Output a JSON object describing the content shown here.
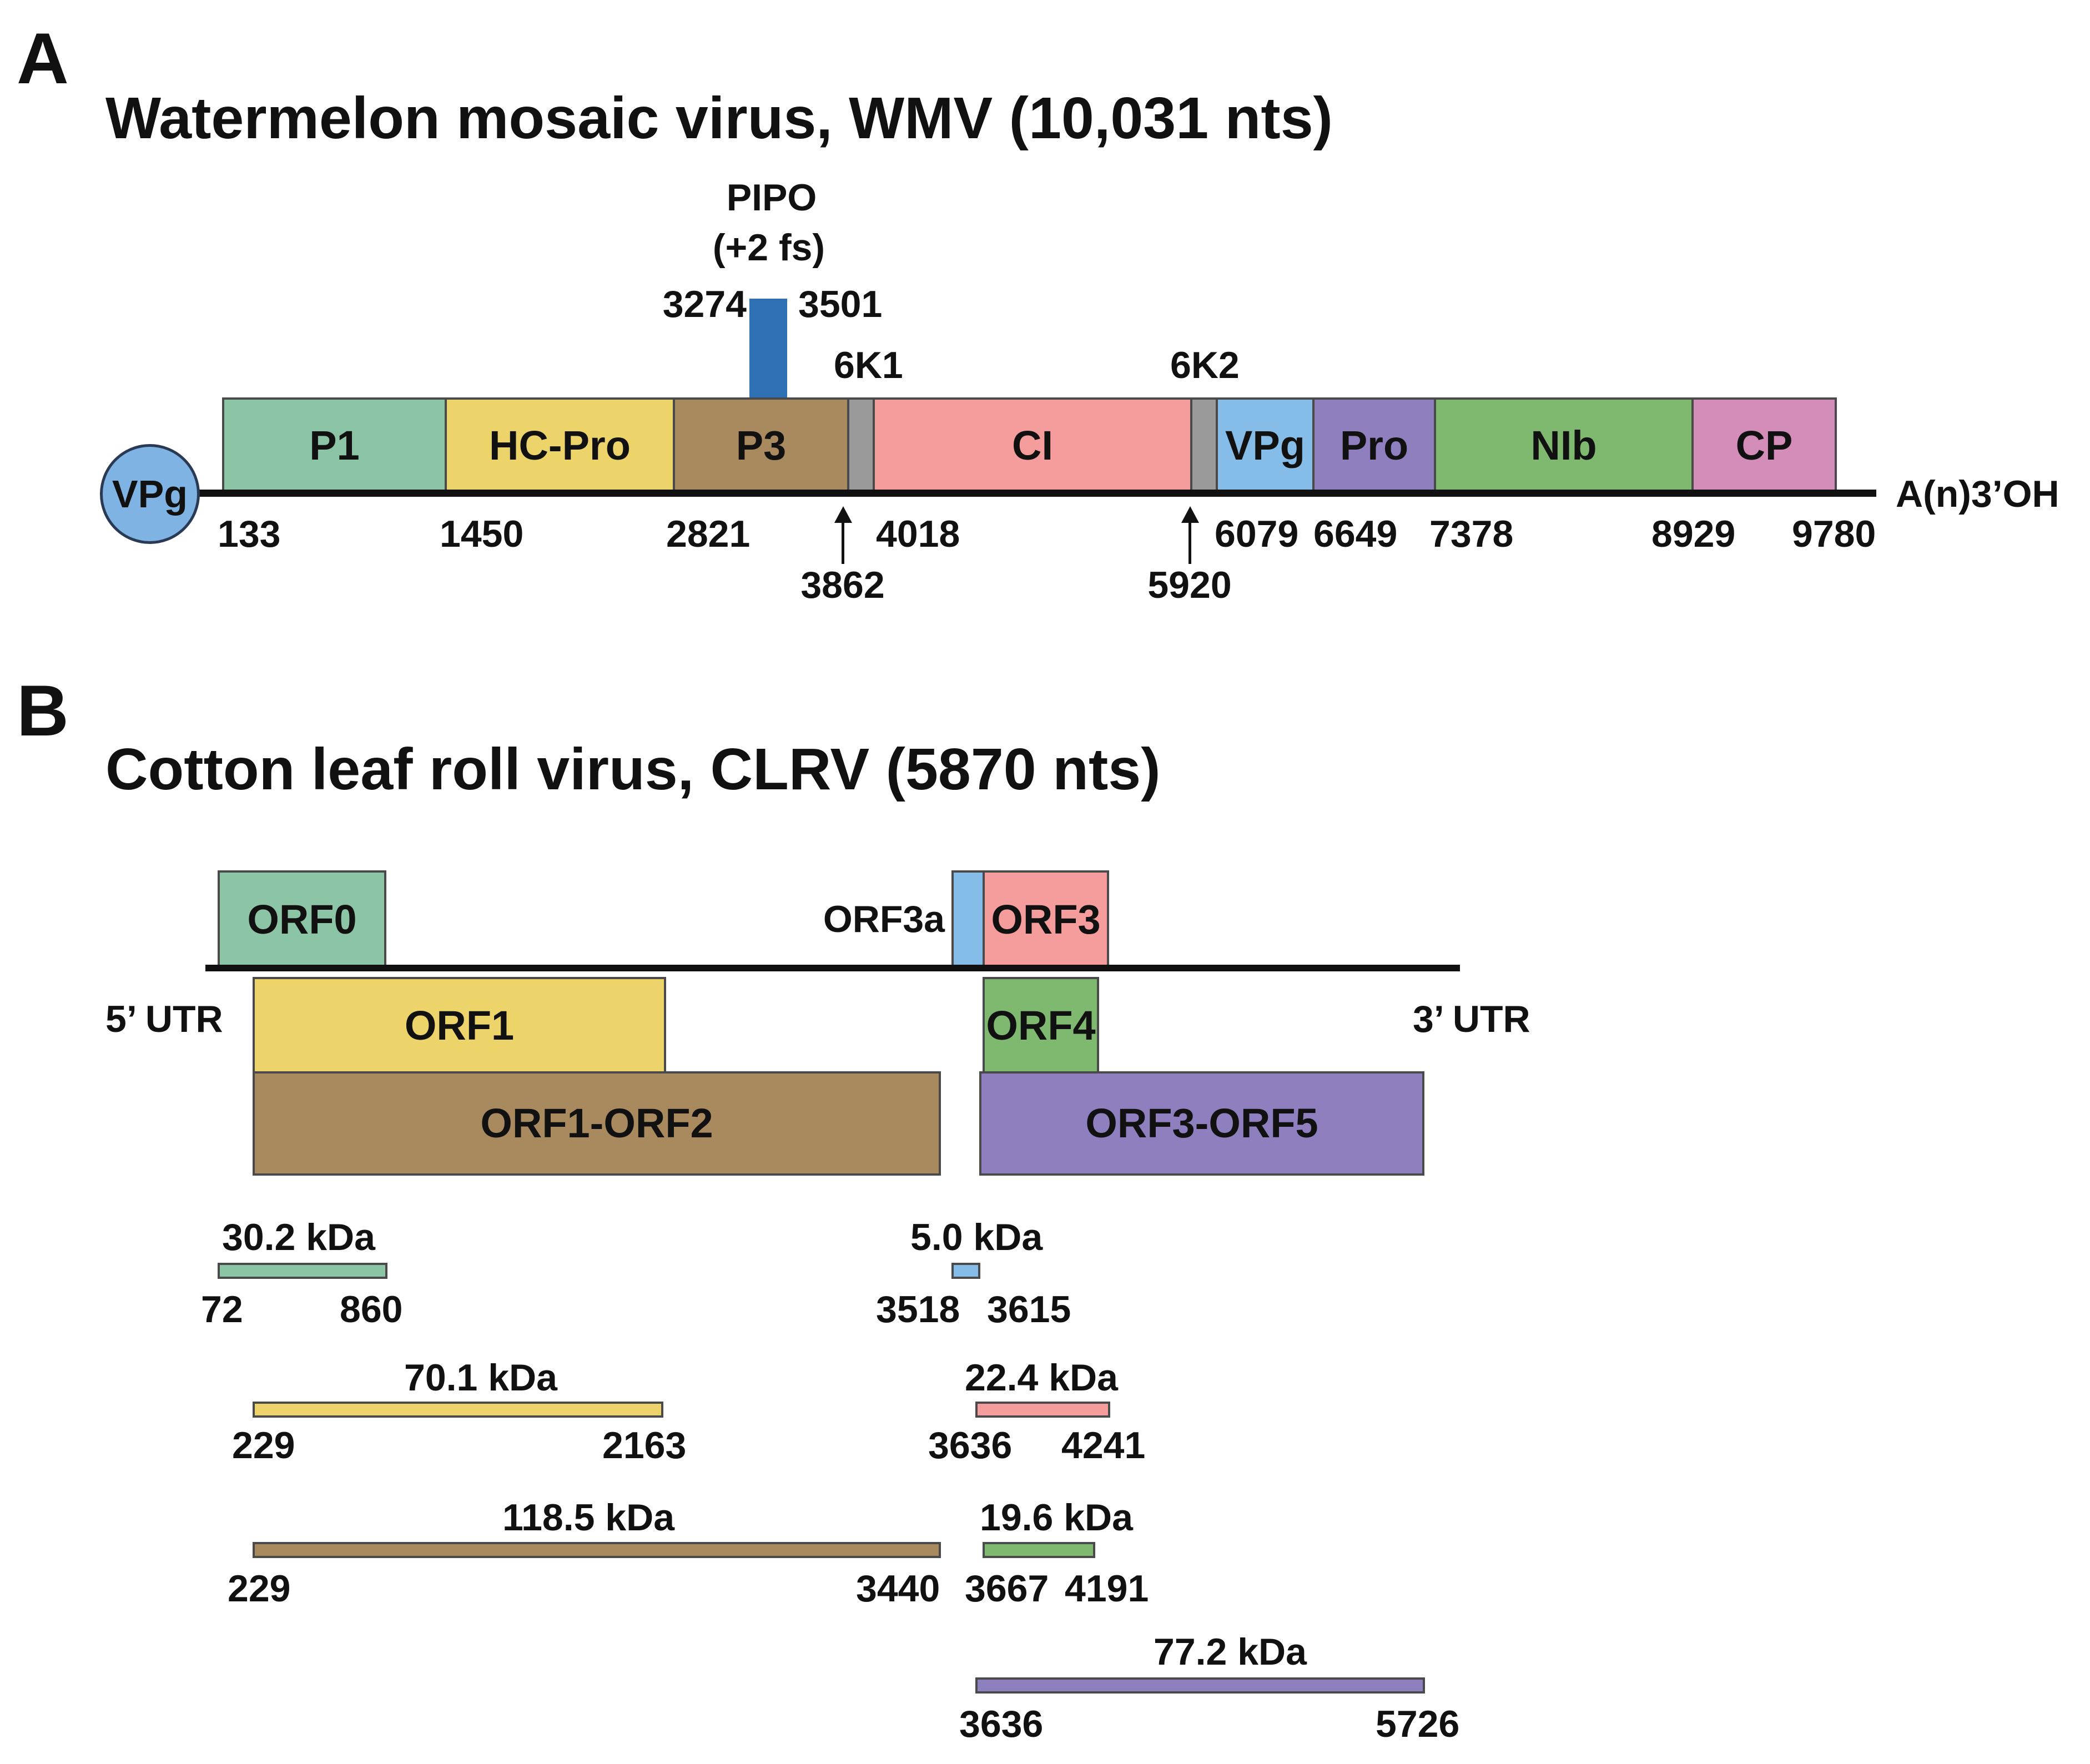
{
  "panelA": {
    "letter": "A",
    "title": "Watermelon mosaic virus, WMV (10,031 nts)",
    "vpg_circle": "VPg",
    "tail": "A(n)3’OH",
    "pipo": {
      "name": "PIPO",
      "note": "(+2 fs)",
      "start": "3274",
      "end": "3501"
    },
    "domains": {
      "p1": "P1",
      "hcpro": "HC-Pro",
      "p3": "P3",
      "sixk1": "6K1",
      "ci": "CI",
      "sixk2": "6K2",
      "vpg": "VPg",
      "pro": "Pro",
      "nib": "NIb",
      "cp": "CP"
    },
    "positions": {
      "p1": "133",
      "hcpro": "1450",
      "p3": "2821",
      "sixk1": "3862",
      "ci": "4018",
      "sixk2": "5920",
      "vpg": "6079",
      "pro": "6649",
      "nib": "7378",
      "cp": "8929",
      "end": "9780"
    }
  },
  "panelB": {
    "letter": "B",
    "title": "Cotton leaf roll virus, CLRV (5870 nts)",
    "utr5": "5’ UTR",
    "utr3": "3’ UTR",
    "orfs": {
      "orf0": "ORF0",
      "orf3a": "ORF3a",
      "orf3": "ORF3",
      "orf1": "ORF1",
      "orf4": "ORF4",
      "orf1orf2": "ORF1-ORF2",
      "orf3orf5": "ORF3-ORF5"
    },
    "products": {
      "orf0": {
        "mass": "30.2 kDa",
        "start": "72",
        "end": "860"
      },
      "orf3a": {
        "mass": "5.0 kDa",
        "start": "3518",
        "end": "3615"
      },
      "orf1": {
        "mass": "70.1 kDa",
        "start": "229",
        "end": "2163"
      },
      "orf3": {
        "mass": "22.4 kDa",
        "start": "3636",
        "end": "4241"
      },
      "orf1orf2": {
        "mass": "118.5 kDa",
        "start": "229",
        "end": "3440"
      },
      "orf4": {
        "mass": "19.6 kDa",
        "start": "3667",
        "end": "4191"
      },
      "orf3orf5": {
        "mass": "77.2 kDa",
        "start": "3636",
        "end": "5726"
      }
    }
  },
  "colors": {
    "p1": "#8cc4a6",
    "hcpro": "#ecd46a",
    "p3": "#a98a5e",
    "sixk": "#9a9a9a",
    "ci": "#f59c9c",
    "vpg": "#86bce8",
    "pro": "#8f7fbf",
    "nib": "#7fb86f",
    "cp": "#d48cb9",
    "pipo": "#2f6fb3"
  }
}
